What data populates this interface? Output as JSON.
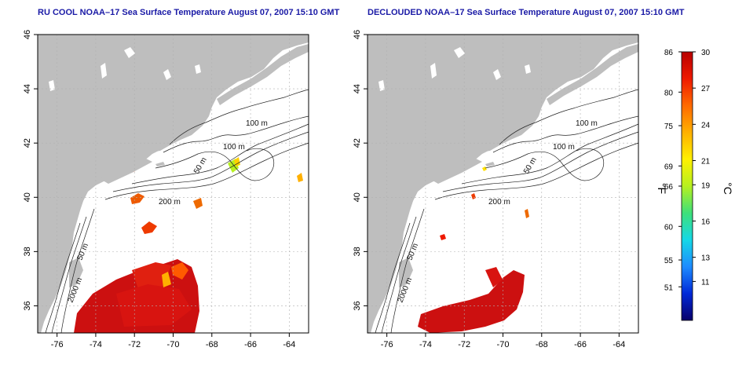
{
  "panels": [
    {
      "title": "RU COOL NOAA–17 Sea Surface Temperature August 07, 2007 15:10 GMT"
    },
    {
      "title": "DECLOUDED NOAA–17 Sea Surface Temperature August 07, 2007 15:10 GMT"
    }
  ],
  "axes": {
    "lon_ticks": [
      "-76",
      "-74",
      "-72",
      "-70",
      "-68",
      "-66",
      "-64"
    ],
    "lat_ticks": [
      "36",
      "38",
      "40",
      "42",
      "44",
      "46"
    ],
    "lon_range": [
      -77,
      -63
    ],
    "lat_range": [
      35,
      46
    ]
  },
  "isobaths": {
    "labels": [
      "100 m",
      "100 m",
      "50 m",
      "200 m",
      "50 m",
      "2000 m"
    ]
  },
  "colorbar": {
    "fahrenheit_label": "°F",
    "celsius_label": "°C",
    "fahrenheit_ticks": [
      "86",
      "80",
      "75",
      "69",
      "66",
      "60",
      "55",
      "51"
    ],
    "celsius_ticks": [
      "30",
      "27",
      "24",
      "21",
      "19",
      "16",
      "13",
      "11"
    ],
    "colors": [
      "#08006a",
      "#0029d8",
      "#1e8cff",
      "#15d8e6",
      "#3ee07a",
      "#b6f020",
      "#fff000",
      "#ffb000",
      "#ff6a00",
      "#ee1a00",
      "#b80000"
    ]
  },
  "colors": {
    "land": "#bebebe",
    "ocean": "#ffffff",
    "title": "#1a1aa6",
    "grid": "#b0b0b0"
  }
}
